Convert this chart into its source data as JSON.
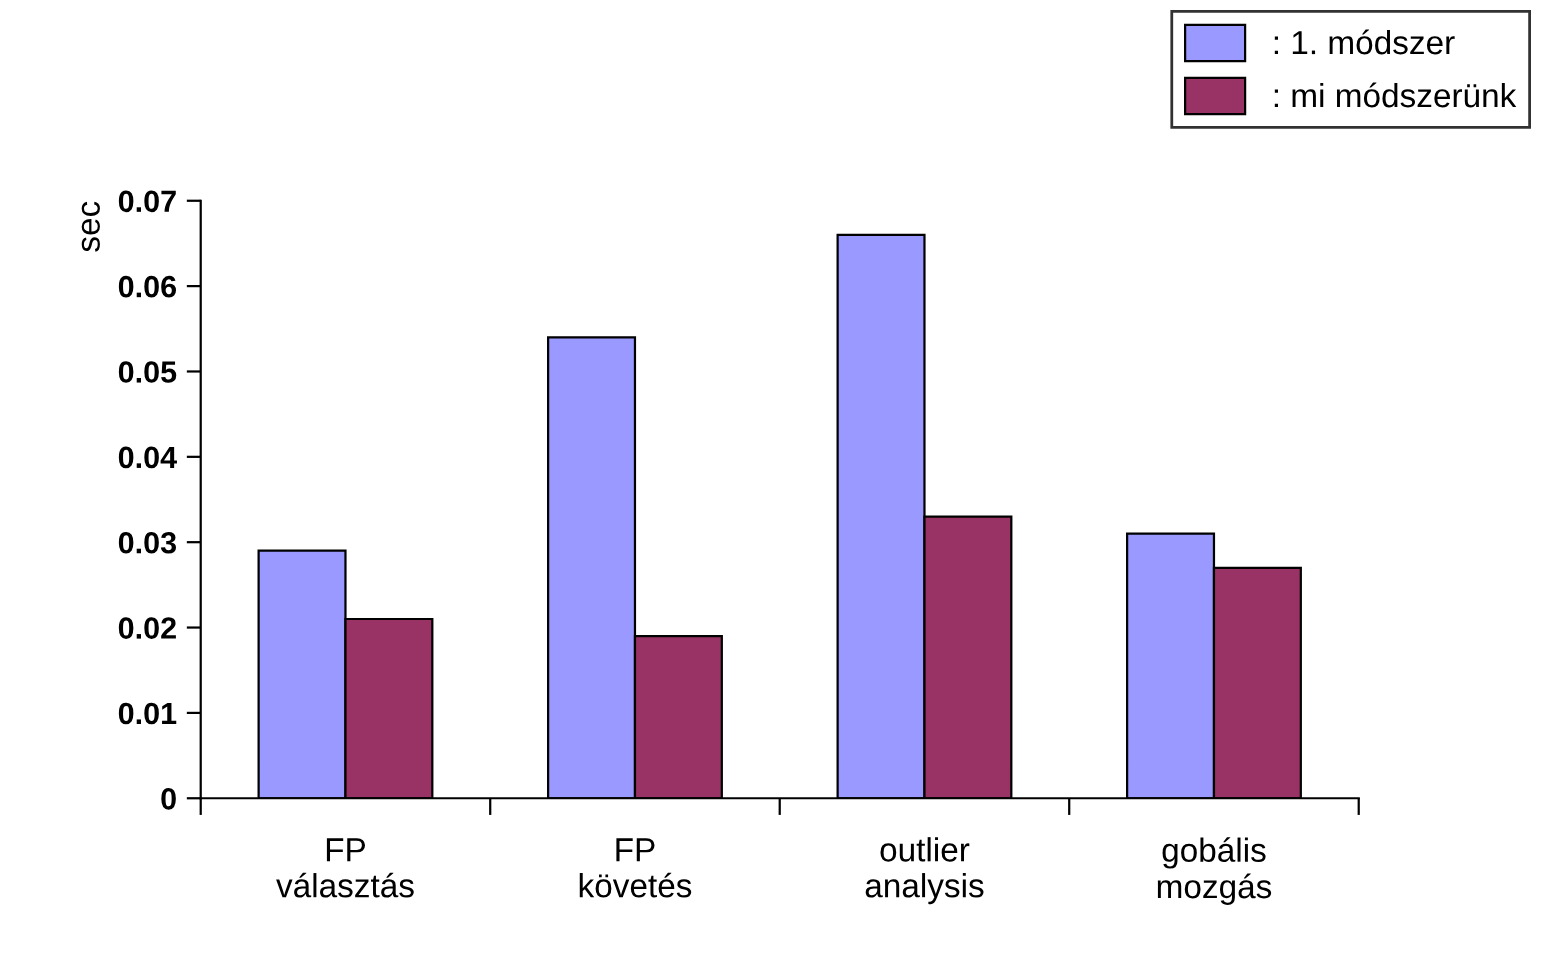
{
  "chart_data": {
    "type": "bar",
    "ylabel": "sec",
    "categories": [
      "FP\nválasztás",
      "FP\nkövetés",
      "outlier\nanalysis",
      "gobális\nmozgás"
    ],
    "series": [
      {
        "name": ": 1. módszer",
        "color": "#9999ff",
        "values": [
          0.029,
          0.054,
          0.066,
          0.031
        ]
      },
      {
        "name": ": mi módszerünk",
        "color": "#993366",
        "values": [
          0.021,
          0.019,
          0.033,
          0.027
        ]
      }
    ],
    "ylim": [
      0,
      0.07
    ],
    "yticks": [
      0,
      0.01,
      0.02,
      0.03,
      0.04,
      0.05,
      0.06,
      0.07
    ],
    "grid": false,
    "legend": "top right"
  }
}
